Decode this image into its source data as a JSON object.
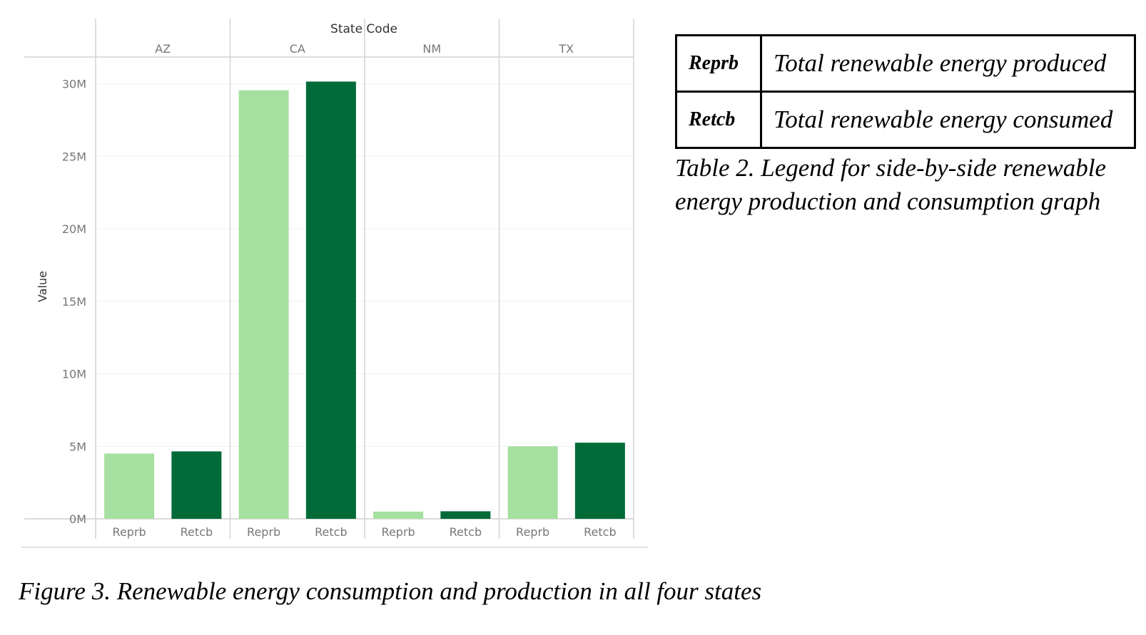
{
  "chart_data": {
    "type": "bar",
    "header_title": "State Code",
    "ylabel": "Value",
    "panels": [
      "AZ",
      "CA",
      "NM",
      "TX"
    ],
    "categories": [
      "Reprb",
      "Retcb"
    ],
    "values": {
      "AZ": [
        4500000,
        4650000
      ],
      "CA": [
        29550000,
        30150000
      ],
      "NM": [
        500000,
        520000
      ],
      "TX": [
        5000000,
        5250000
      ]
    },
    "colors": {
      "Reprb": "#a6e0a0",
      "Retcb": "#006b38"
    },
    "ylim": [
      0,
      31500000
    ],
    "yticks": [
      0,
      5000000,
      10000000,
      15000000,
      20000000,
      25000000,
      30000000
    ],
    "ytick_labels": [
      "0M",
      "5M",
      "10M",
      "15M",
      "20M",
      "25M",
      "30M"
    ],
    "grid": true,
    "legend": "none"
  },
  "legend_table": {
    "rows": [
      {
        "code": "Reprb",
        "description": "Total renewable energy produced"
      },
      {
        "code": "Retcb",
        "description": "Total renewable energy consumed"
      }
    ],
    "caption": "Table 2. Legend for side-by-side renewable energy production and consumption graph"
  },
  "figure_caption": "Figure 3. Renewable energy consumption and production in all four states"
}
